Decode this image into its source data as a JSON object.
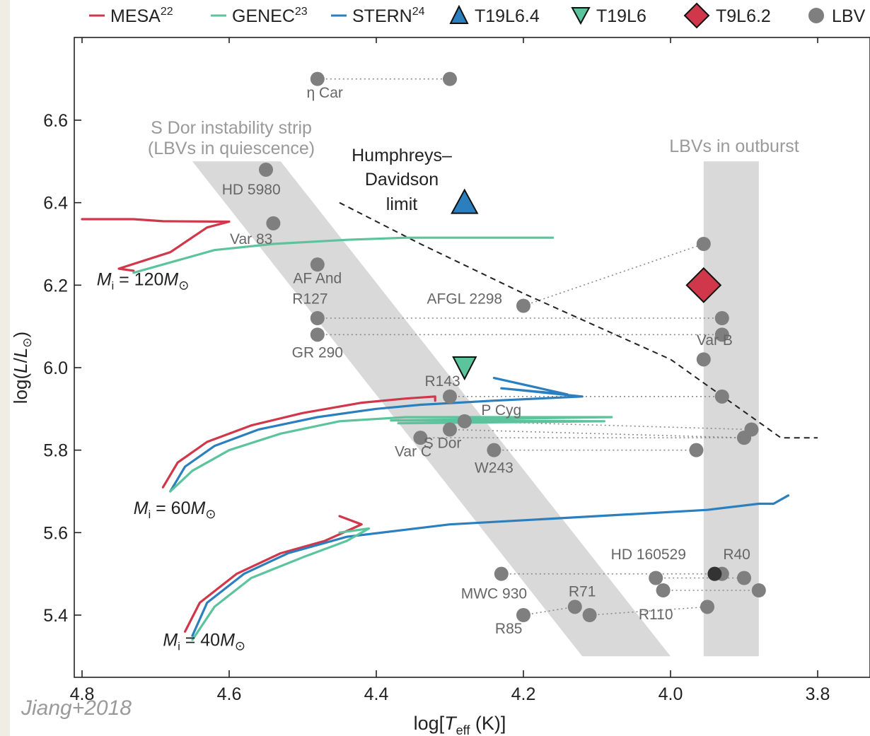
{
  "credit": "Jiang+2018",
  "chart_data": {
    "type": "scatter",
    "xlabel": "log[Teff (K)]",
    "ylabel": "log(L/L⊙)",
    "xlim": [
      4.8,
      3.8
    ],
    "ylim": [
      5.3,
      6.75
    ],
    "x_ticks": [
      4.8,
      4.6,
      4.4,
      4.2,
      4.0,
      3.8
    ],
    "x_tick_labels": [
      "4.8",
      "4.6",
      "4.4",
      "4.2",
      "4.0",
      "3.8"
    ],
    "y_ticks": [
      5.4,
      5.6,
      5.8,
      6.0,
      6.2,
      6.4,
      6.6
    ],
    "y_tick_labels": [
      "5.4",
      "5.6",
      "5.8",
      "6.0",
      "6.2",
      "6.4",
      "6.6"
    ],
    "grid": false,
    "legend_position": "top",
    "colors": {
      "mesa": "#d0374a",
      "genec": "#5cc49c",
      "stern": "#2b7fbf",
      "lbv": "#7f7f7f",
      "band": "#d9d9d9",
      "hd": "#222222"
    },
    "legend": [
      {
        "text": "MESA",
        "sup": "22",
        "marker": "line",
        "color": "#d0374a"
      },
      {
        "text": "GENEC",
        "sup": "23",
        "marker": "line",
        "color": "#5cc49c"
      },
      {
        "text": "STERN",
        "sup": "24",
        "marker": "line",
        "color": "#2b7fbf"
      },
      {
        "text": "T19L6.4",
        "sup": "",
        "marker": "triangle-up",
        "color": "#2b7fbf"
      },
      {
        "text": "T19L6",
        "sup": "",
        "marker": "triangle-down",
        "color": "#5cc49c"
      },
      {
        "text": "T9L6.2",
        "sup": "",
        "marker": "diamond",
        "color": "#d0374a"
      },
      {
        "text": "LBV",
        "sup": "",
        "marker": "circle",
        "color": "#7f7f7f"
      }
    ],
    "regions": [
      {
        "label_lines": [
          "S Dor instability strip",
          "(LBVs in quiescence)"
        ],
        "label_x": 4.6,
        "label_y": 6.64,
        "polygon": [
          [
            4.65,
            6.5
          ],
          [
            4.53,
            6.5
          ],
          [
            4.0,
            5.3
          ],
          [
            4.12,
            5.3
          ]
        ]
      },
      {
        "label_lines": [
          "LBVs in outburst"
        ],
        "label_x": 3.94,
        "label_y": 6.52,
        "polygon": [
          [
            3.955,
            6.5
          ],
          [
            3.88,
            6.5
          ],
          [
            3.88,
            5.3
          ],
          [
            3.955,
            5.3
          ]
        ]
      }
    ],
    "hd_limit": {
      "label_lines": [
        "Humphreys–",
        "Davidson",
        "limit"
      ],
      "label_x": 4.32,
      "label_y": 6.505,
      "points": [
        [
          4.45,
          6.4
        ],
        [
          4.34,
          6.3
        ],
        [
          4.2,
          6.18
        ],
        [
          4.0,
          6.02
        ],
        [
          3.85,
          5.83
        ],
        [
          3.8,
          5.83
        ]
      ]
    },
    "tracks": [
      {
        "model": "MESA",
        "mass_label": "120",
        "color": "#d0374a",
        "points": [
          [
            4.8,
            6.36
          ],
          [
            4.73,
            6.36
          ],
          [
            4.69,
            6.355
          ],
          [
            4.6,
            6.354
          ],
          [
            4.63,
            6.34
          ],
          [
            4.68,
            6.28
          ],
          [
            4.75,
            6.24
          ],
          [
            4.73,
            6.235
          ]
        ]
      },
      {
        "model": "GENEC",
        "mass_label": "120",
        "color": "#5cc49c",
        "points": [
          [
            4.73,
            6.23
          ],
          [
            4.68,
            6.255
          ],
          [
            4.62,
            6.285
          ],
          [
            4.54,
            6.3
          ],
          [
            4.44,
            6.31
          ],
          [
            4.36,
            6.315
          ],
          [
            4.25,
            6.315
          ],
          [
            4.16,
            6.315
          ]
        ]
      },
      {
        "model": "MESA",
        "mass_label": "60",
        "color": "#d0374a",
        "points": [
          [
            4.69,
            5.71
          ],
          [
            4.67,
            5.77
          ],
          [
            4.63,
            5.82
          ],
          [
            4.57,
            5.86
          ],
          [
            4.5,
            5.89
          ],
          [
            4.42,
            5.915
          ],
          [
            4.36,
            5.925
          ],
          [
            4.32,
            5.93
          ],
          [
            4.32,
            5.92
          ]
        ]
      },
      {
        "model": "STERN",
        "mass_label": "60",
        "color": "#2b7fbf",
        "points": [
          [
            4.68,
            5.7
          ],
          [
            4.66,
            5.76
          ],
          [
            4.62,
            5.81
          ],
          [
            4.56,
            5.85
          ],
          [
            4.48,
            5.88
          ],
          [
            4.4,
            5.9
          ],
          [
            4.34,
            5.91
          ],
          [
            4.24,
            5.92
          ],
          [
            4.12,
            5.93
          ],
          [
            4.23,
            5.95
          ],
          [
            4.14,
            5.935
          ],
          [
            4.24,
            5.975
          ]
        ]
      },
      {
        "model": "GENEC",
        "mass_label": "60",
        "color": "#5cc49c",
        "points": [
          [
            4.68,
            5.7
          ],
          [
            4.65,
            5.75
          ],
          [
            4.6,
            5.8
          ],
          [
            4.53,
            5.84
          ],
          [
            4.45,
            5.87
          ],
          [
            4.36,
            5.88
          ],
          [
            4.3,
            5.88
          ],
          [
            4.08,
            5.88
          ],
          [
            4.38,
            5.872
          ],
          [
            4.09,
            5.87
          ],
          [
            4.37,
            5.865
          ]
        ]
      },
      {
        "model": "MESA",
        "mass_label": "40",
        "color": "#d0374a",
        "points": [
          [
            4.66,
            5.36
          ],
          [
            4.64,
            5.43
          ],
          [
            4.59,
            5.5
          ],
          [
            4.53,
            5.55
          ],
          [
            4.47,
            5.58
          ],
          [
            4.42,
            5.62
          ],
          [
            4.45,
            5.64
          ]
        ]
      },
      {
        "model": "STERN",
        "mass_label": "40",
        "color": "#2b7fbf",
        "points": [
          [
            4.65,
            5.35
          ],
          [
            4.63,
            5.43
          ],
          [
            4.58,
            5.5
          ],
          [
            4.52,
            5.55
          ],
          [
            4.44,
            5.59
          ],
          [
            4.3,
            5.62
          ],
          [
            4.1,
            5.64
          ],
          [
            3.95,
            5.655
          ],
          [
            3.88,
            5.67
          ],
          [
            3.86,
            5.67
          ],
          [
            3.84,
            5.69
          ]
        ]
      },
      {
        "model": "GENEC",
        "mass_label": "40",
        "color": "#5cc49c",
        "points": [
          [
            4.65,
            5.34
          ],
          [
            4.62,
            5.42
          ],
          [
            4.57,
            5.49
          ],
          [
            4.5,
            5.54
          ],
          [
            4.44,
            5.58
          ],
          [
            4.41,
            5.61
          ],
          [
            4.45,
            5.6
          ]
        ]
      }
    ],
    "mass_labels": [
      {
        "value": "120",
        "x": 4.78,
        "y": 6.2
      },
      {
        "value": "60",
        "x": 4.73,
        "y": 5.645
      },
      {
        "value": "40",
        "x": 4.69,
        "y": 5.325
      }
    ],
    "models": [
      {
        "name": "T19L6.4",
        "marker": "triangle-up",
        "color": "#2b7fbf",
        "x": 4.28,
        "y": 6.4
      },
      {
        "name": "T19L6",
        "marker": "triangle-down",
        "color": "#5cc49c",
        "x": 4.28,
        "y": 6.0
      },
      {
        "name": "T9L6.2",
        "marker": "diamond",
        "color": "#d0374a",
        "x": 3.955,
        "y": 6.2
      }
    ],
    "lbv_pairs": [
      {
        "q": [
          4.48,
          6.7
        ],
        "o": [
          4.3,
          6.7
        ]
      },
      {
        "q": [
          4.2,
          6.15
        ],
        "o": [
          3.955,
          6.3
        ]
      },
      {
        "q": [
          4.48,
          6.12
        ],
        "o": [
          3.93,
          6.12
        ]
      },
      {
        "q": [
          4.48,
          6.08
        ],
        "o": [
          3.93,
          6.08
        ]
      },
      {
        "q": [
          4.3,
          5.93
        ],
        "o": [
          3.93,
          5.93
        ]
      },
      {
        "q": [
          4.28,
          5.87
        ],
        "o": [
          3.89,
          5.85
        ]
      },
      {
        "q": [
          4.3,
          5.85
        ],
        "o": [
          3.9,
          5.83
        ]
      },
      {
        "q": [
          4.34,
          5.83
        ],
        "o": [
          3.9,
          5.83
        ]
      },
      {
        "q": [
          4.24,
          5.8
        ],
        "o": [
          3.965,
          5.8
        ]
      },
      {
        "q": [
          4.23,
          5.5
        ],
        "o": [
          3.94,
          5.5
        ]
      },
      {
        "q": [
          4.02,
          5.49
        ],
        "o": [
          3.9,
          5.49
        ]
      },
      {
        "q": [
          4.01,
          5.46
        ],
        "o": [
          3.88,
          5.46
        ]
      },
      {
        "q": [
          4.2,
          5.4
        ],
        "o": [
          4.13,
          5.42
        ]
      },
      {
        "q": [
          4.11,
          5.4
        ],
        "o": [
          3.95,
          5.42
        ]
      }
    ],
    "lbv_points": [
      {
        "x": 4.55,
        "y": 6.48
      },
      {
        "x": 4.54,
        "y": 6.35
      },
      {
        "x": 4.48,
        "y": 6.25
      },
      {
        "x": 3.955,
        "y": 6.02
      },
      {
        "x": 3.93,
        "y": 5.5
      }
    ],
    "hd160529_dot": {
      "x": 3.94,
      "y": 5.5,
      "color": "#333333"
    },
    "annotations": [
      {
        "text": "η Car",
        "x": 4.47,
        "y": 6.655
      },
      {
        "text": "HD 5980",
        "x": 4.57,
        "y": 6.42
      },
      {
        "text": "Var 83",
        "x": 4.57,
        "y": 6.3
      },
      {
        "text": "AF And",
        "x": 4.48,
        "y": 6.205
      },
      {
        "text": "R127",
        "x": 4.49,
        "y": 6.155
      },
      {
        "text": "AFGL 2298",
        "x": 4.28,
        "y": 6.155
      },
      {
        "text": "GR 290",
        "x": 4.48,
        "y": 6.025
      },
      {
        "text": "Var B",
        "x": 3.94,
        "y": 6.055
      },
      {
        "text": "R143",
        "x": 4.31,
        "y": 5.955
      },
      {
        "text": "P Cyg",
        "x": 4.23,
        "y": 5.885
      },
      {
        "text": "S Dor",
        "x": 4.31,
        "y": 5.805
      },
      {
        "text": "Var C",
        "x": 4.35,
        "y": 5.785
      },
      {
        "text": "W243",
        "x": 4.24,
        "y": 5.745
      },
      {
        "text": "HD 160529",
        "x": 4.03,
        "y": 5.535
      },
      {
        "text": "R40",
        "x": 3.91,
        "y": 5.535
      },
      {
        "text": "R71",
        "x": 4.12,
        "y": 5.445
      },
      {
        "text": "MWC 930",
        "x": 4.24,
        "y": 5.44
      },
      {
        "text": "R110",
        "x": 4.02,
        "y": 5.39
      },
      {
        "text": "R85",
        "x": 4.22,
        "y": 5.355
      }
    ]
  }
}
